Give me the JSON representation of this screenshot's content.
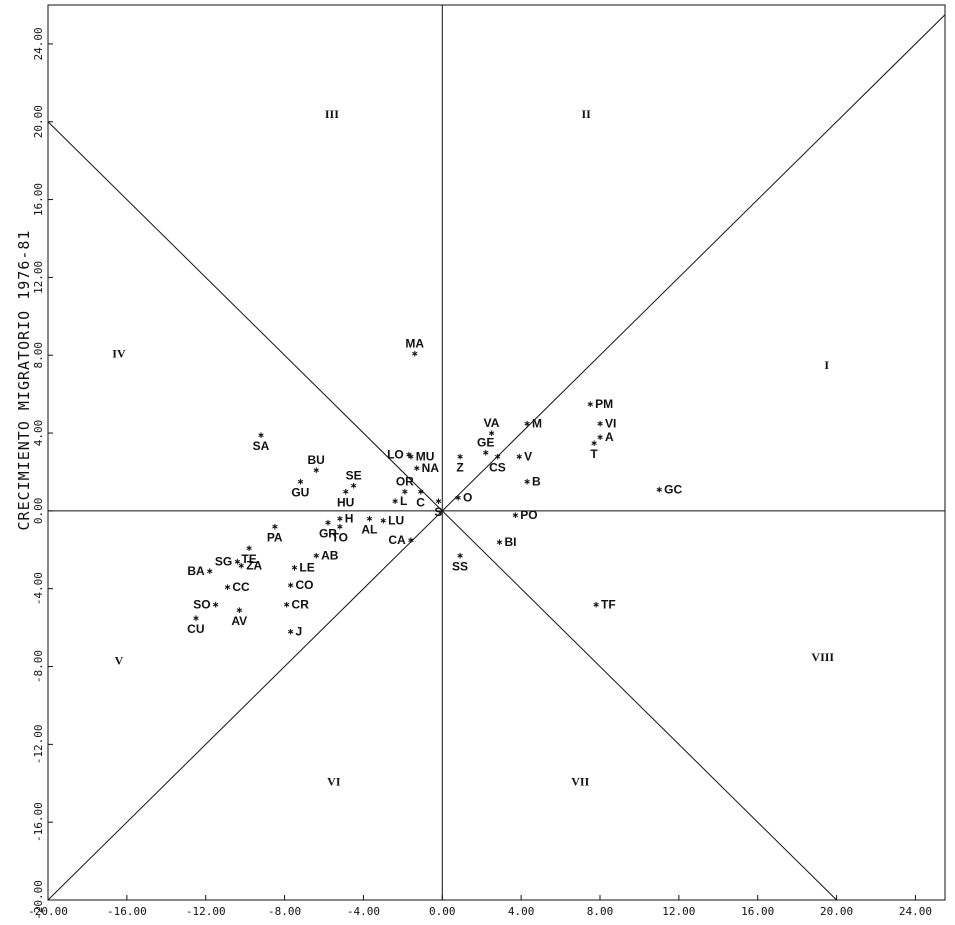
{
  "chart_data": {
    "type": "scatter",
    "title": "",
    "xlabel": "",
    "ylabel": "CRECIMIENTO MIGRATORIO 1976-81",
    "xlim": [
      -20,
      25.5
    ],
    "ylim": [
      -20,
      26
    ],
    "x_ticks": [
      "-20.00",
      "-16.00",
      "-12.00",
      "-8.00",
      "-4.00",
      "0.00",
      "4.00",
      "8.00",
      "12.00",
      "16.00",
      "20.00",
      "24.00"
    ],
    "y_ticks": [
      "-20.00",
      "-16.00",
      "-12.00",
      "-8.00",
      "-4.00",
      "0.00",
      "4.00",
      "8.00",
      "12.00",
      "16.00",
      "20.00",
      "24.00"
    ],
    "grid": false,
    "reference_lines": [
      "x = 0",
      "y = 0",
      "y = x",
      "y = -x"
    ],
    "sectors": [
      {
        "label": "I",
        "x": 19.5,
        "y": 7.5
      },
      {
        "label": "II",
        "x": 7.3,
        "y": 20.4
      },
      {
        "label": "III",
        "x": -5.6,
        "y": 20.4
      },
      {
        "label": "IV",
        "x": -16.4,
        "y": 8.1
      },
      {
        "label": "V",
        "x": -16.4,
        "y": -7.7
      },
      {
        "label": "VI",
        "x": -5.5,
        "y": -13.9
      },
      {
        "label": "VII",
        "x": 7,
        "y": -13.9
      },
      {
        "label": "VIII",
        "x": 19.3,
        "y": -7.5
      }
    ],
    "points": [
      {
        "label": "MA",
        "x": -1.4,
        "y": 8.1
      },
      {
        "label": "SA",
        "x": -9.2,
        "y": 3.9
      },
      {
        "label": "BU",
        "x": -6.4,
        "y": 2.1
      },
      {
        "label": "GU",
        "x": -7.2,
        "y": 1.5
      },
      {
        "label": "SE",
        "x": -4.5,
        "y": 1.3
      },
      {
        "label": "HU",
        "x": -4.9,
        "y": 1.0
      },
      {
        "label": "LO",
        "x": -1.7,
        "y": 2.9
      },
      {
        "label": "MU",
        "x": -1.6,
        "y": 2.8
      },
      {
        "label": "NA",
        "x": -1.3,
        "y": 2.2
      },
      {
        "label": "OR",
        "x": -1.9,
        "y": 1.0
      },
      {
        "label": "L",
        "x": -2.4,
        "y": 0.5
      },
      {
        "label": "C",
        "x": -1.1,
        "y": 1.0
      },
      {
        "label": "S",
        "x": -0.2,
        "y": 0.5
      },
      {
        "label": "H",
        "x": -5.2,
        "y": -0.4
      },
      {
        "label": "GR",
        "x": -5.8,
        "y": -0.6
      },
      {
        "label": "TO",
        "x": -5.2,
        "y": -0.8
      },
      {
        "label": "AL",
        "x": -3.7,
        "y": -0.4
      },
      {
        "label": "LU",
        "x": -3.0,
        "y": -0.5
      },
      {
        "label": "PA",
        "x": -8.5,
        "y": -0.8
      },
      {
        "label": "TE",
        "x": -9.8,
        "y": -1.9
      },
      {
        "label": "CA",
        "x": -1.6,
        "y": -1.5
      },
      {
        "label": "AB",
        "x": -6.4,
        "y": -2.3
      },
      {
        "label": "SG",
        "x": -10.4,
        "y": -2.6
      },
      {
        "label": "ZA",
        "x": -10.2,
        "y": -2.8
      },
      {
        "label": "BA",
        "x": -11.8,
        "y": -3.1
      },
      {
        "label": "LE",
        "x": -7.5,
        "y": -2.9
      },
      {
        "label": "CC",
        "x": -10.9,
        "y": -3.9
      },
      {
        "label": "CO",
        "x": -7.7,
        "y": -3.8
      },
      {
        "label": "SO",
        "x": -11.5,
        "y": -4.8
      },
      {
        "label": "CR",
        "x": -7.9,
        "y": -4.8
      },
      {
        "label": "AV",
        "x": -10.3,
        "y": -5.1
      },
      {
        "label": "CU",
        "x": -12.5,
        "y": -5.5
      },
      {
        "label": "J",
        "x": -7.7,
        "y": -6.2
      },
      {
        "label": "VA",
        "x": 2.5,
        "y": 4.0
      },
      {
        "label": "GE",
        "x": 2.2,
        "y": 3.0
      },
      {
        "label": "Z",
        "x": 0.9,
        "y": 2.8
      },
      {
        "label": "CS",
        "x": 2.8,
        "y": 2.8
      },
      {
        "label": "M",
        "x": 4.3,
        "y": 4.5
      },
      {
        "label": "V",
        "x": 3.9,
        "y": 2.8
      },
      {
        "label": "B",
        "x": 4.3,
        "y": 1.5
      },
      {
        "label": "O",
        "x": 0.8,
        "y": 0.7
      },
      {
        "label": "PM",
        "x": 7.5,
        "y": 5.5
      },
      {
        "label": "VI",
        "x": 8.0,
        "y": 4.5
      },
      {
        "label": "A",
        "x": 8.0,
        "y": 3.8
      },
      {
        "label": "T",
        "x": 7.7,
        "y": 3.5
      },
      {
        "label": "GC",
        "x": 11.0,
        "y": 1.1
      },
      {
        "label": "PO",
        "x": 3.7,
        "y": -0.2
      },
      {
        "label": "BI",
        "x": 2.9,
        "y": -1.6
      },
      {
        "label": "SS",
        "x": 0.9,
        "y": -2.3
      },
      {
        "label": "TF",
        "x": 7.8,
        "y": -4.8
      }
    ]
  }
}
